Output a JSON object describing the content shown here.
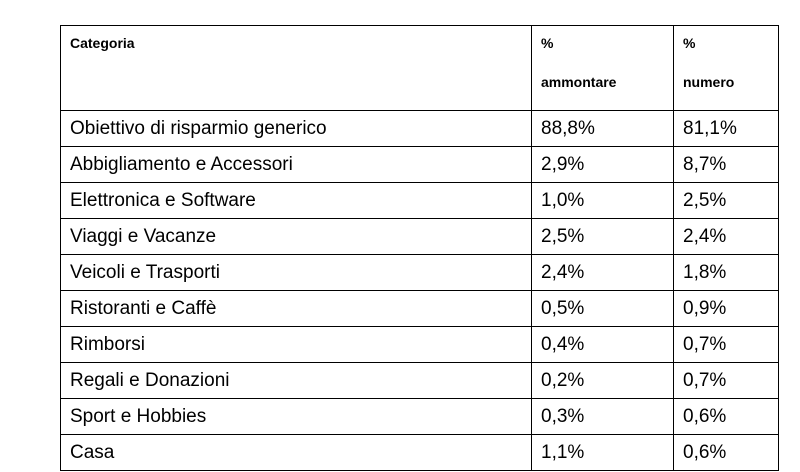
{
  "table": {
    "header": [
      [
        "Categoria"
      ],
      [
        "%",
        "ammontare"
      ],
      [
        "%",
        "numero"
      ]
    ],
    "rows": [
      [
        "Obiettivo di risparmio generico",
        "88,8%",
        "81,1%"
      ],
      [
        "Abbigliamento e Accessori",
        "2,9%",
        "8,7%"
      ],
      [
        "Elettronica e Software",
        "1,0%",
        "2,5%"
      ],
      [
        "Viaggi e Vacanze",
        "2,5%",
        "2,4%"
      ],
      [
        "Veicoli e Trasporti",
        "2,4%",
        "1,8%"
      ],
      [
        "Ristoranti e Caffè",
        "0,5%",
        "0,9%"
      ],
      [
        "Rimborsi",
        "0,4%",
        "0,7%"
      ],
      [
        "Regali e Donazioni",
        "0,2%",
        "0,7%"
      ],
      [
        "Sport e Hobbies",
        "0,3%",
        "0,6%"
      ],
      [
        "Casa",
        "1,1%",
        "0,6%"
      ]
    ]
  }
}
